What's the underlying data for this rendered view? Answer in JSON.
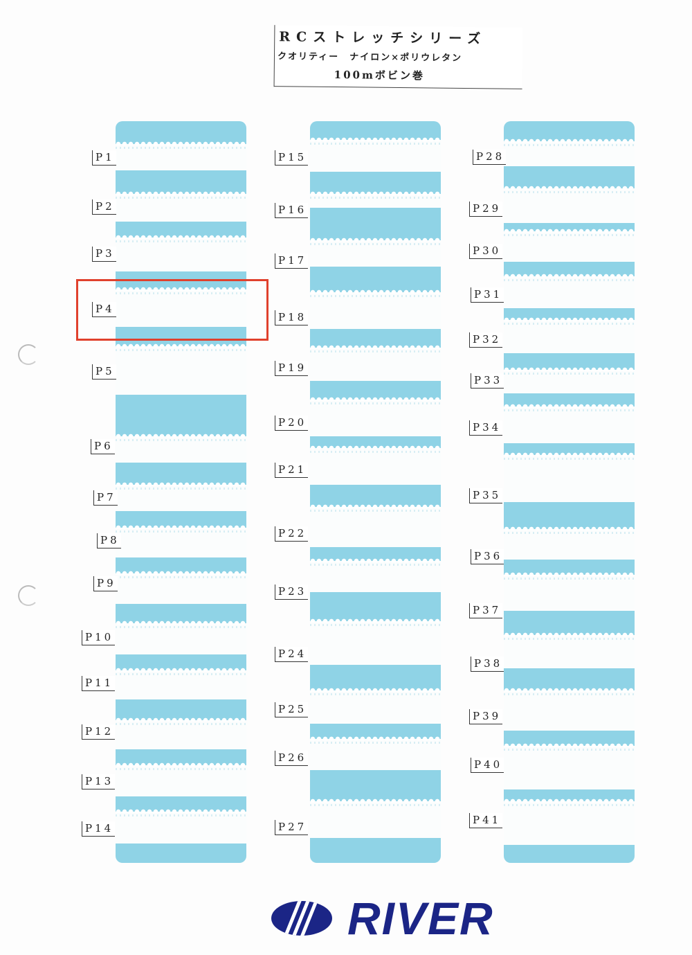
{
  "header": {
    "title": "RCストレッチシリーズ",
    "quality": "クオリティー　ナイロン×ポリウレタン",
    "spool": "100mボビン巻"
  },
  "columns": [
    {
      "labels": [
        "P1",
        "P2",
        "P3",
        "P4",
        "P5",
        "P6",
        "P7",
        "P8",
        "P9",
        "P10",
        "P11",
        "P12",
        "P13",
        "P14"
      ]
    },
    {
      "labels": [
        "P15",
        "P16",
        "P17",
        "P18",
        "P19",
        "P20",
        "P21",
        "P22",
        "P23",
        "P24",
        "P25",
        "P26",
        "P27"
      ]
    },
    {
      "labels": [
        "P28",
        "P29",
        "P30",
        "P31",
        "P32",
        "P33",
        "P34",
        "P35",
        "P36",
        "P37",
        "P38",
        "P39",
        "P40",
        "P41"
      ]
    }
  ],
  "highlighted": "P4",
  "colors": {
    "strip": "#8fd3e6",
    "highlight": "#e0412d",
    "brand": "#1b2586"
  },
  "logo": {
    "text": "RIVER"
  }
}
